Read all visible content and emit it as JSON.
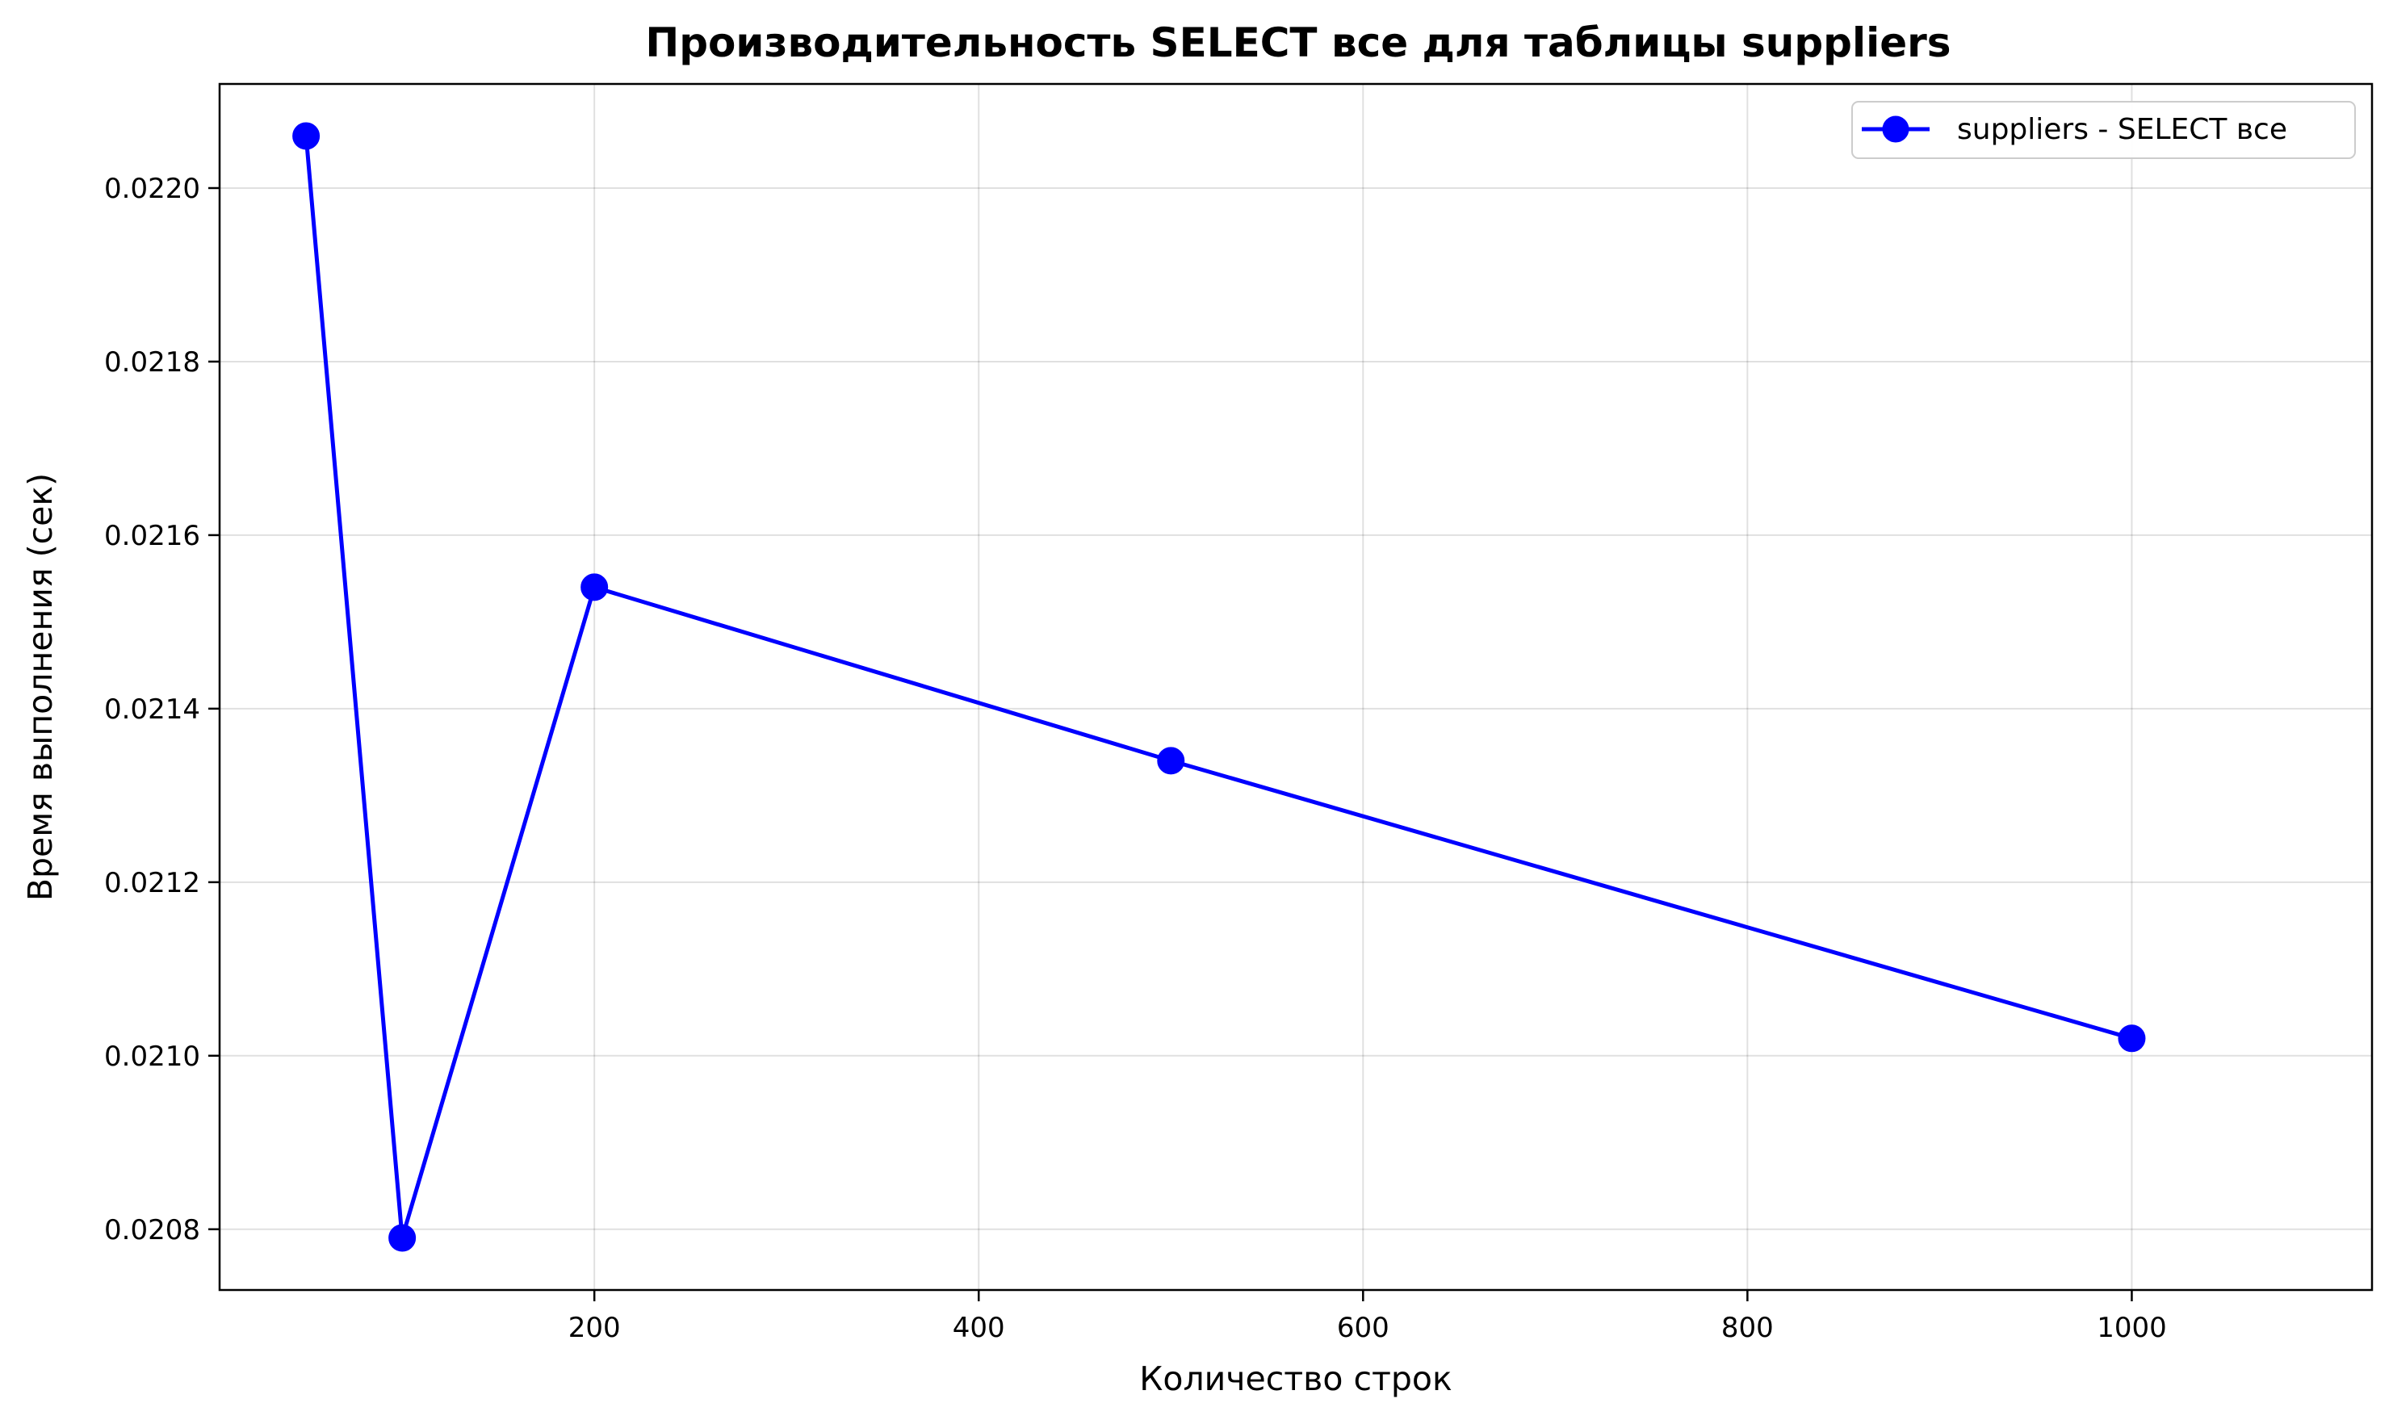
{
  "chart_data": {
    "type": "line",
    "title": "Производительность SELECT все для таблицы suppliers",
    "xlabel": "Количество строк",
    "ylabel": "Время выполнения (сек)",
    "xlim": [
      5,
      1125
    ],
    "ylim": [
      0.02073,
      0.02212
    ],
    "x_ticks": [
      200,
      400,
      600,
      800,
      1000
    ],
    "y_ticks": [
      0.0208,
      0.021,
      0.0212,
      0.0214,
      0.0216,
      0.0218,
      0.022
    ],
    "x_tick_labels": [
      "200",
      "400",
      "600",
      "800",
      "1000"
    ],
    "y_tick_labels": [
      "0.0208",
      "0.0210",
      "0.0212",
      "0.0214",
      "0.0216",
      "0.0218",
      "0.0220"
    ],
    "grid": true,
    "legend_position": "top-right",
    "series": [
      {
        "name": "suppliers - SELECT все",
        "color": "#0000ff",
        "marker": "circle",
        "x": [
          50,
          100,
          200,
          500,
          1000
        ],
        "y": [
          0.02206,
          0.02079,
          0.02154,
          0.02134,
          0.02102
        ]
      }
    ]
  }
}
